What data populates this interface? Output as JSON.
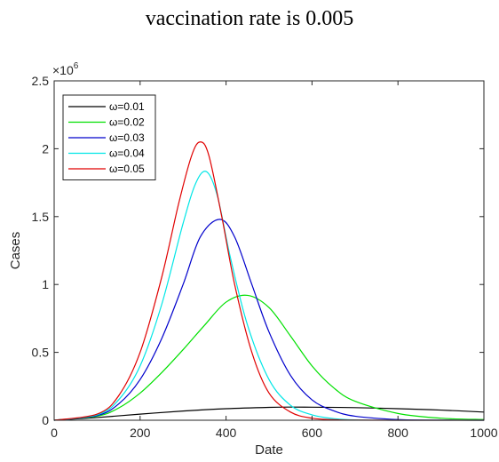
{
  "chart_data": {
    "type": "line",
    "title": "vaccination rate is 0.005",
    "xlabel": "Date",
    "ylabel": "Cases",
    "y_exponent_label": "×10",
    "y_exponent_power": "6",
    "xlim": [
      0,
      1000
    ],
    "ylim": [
      0,
      2500000
    ],
    "x_ticks": [
      0,
      200,
      400,
      600,
      800,
      1000
    ],
    "x_tick_labels": [
      "0",
      "200",
      "400",
      "600",
      "800",
      "1000"
    ],
    "y_ticks": [
      0,
      500000,
      1000000,
      1500000,
      2000000,
      2500000
    ],
    "y_tick_labels": [
      "0",
      "0.5",
      "1",
      "1.5",
      "2",
      "2.5"
    ],
    "grid": false,
    "legend_position": "top-left",
    "series": [
      {
        "name": "ω=0.01",
        "color": "#000000",
        "x": [
          0,
          100,
          200,
          300,
          400,
          500,
          550,
          600,
          700,
          800,
          900,
          1000
        ],
        "y": [
          0,
          20000,
          45000,
          68000,
          85000,
          95000,
          97000,
          96000,
          93000,
          85000,
          75000,
          60000
        ]
      },
      {
        "name": "ω=0.02",
        "color": "#00e000",
        "x": [
          0,
          100,
          150,
          200,
          250,
          300,
          350,
          400,
          450,
          500,
          550,
          600,
          650,
          700,
          800,
          900,
          1000
        ],
        "y": [
          0,
          30000,
          90000,
          200000,
          350000,
          520000,
          700000,
          870000,
          920000,
          830000,
          620000,
          400000,
          240000,
          140000,
          50000,
          15000,
          5000
        ]
      },
      {
        "name": "ω=0.03",
        "color": "#0000cc",
        "x": [
          0,
          100,
          150,
          200,
          250,
          300,
          340,
          385,
          420,
          460,
          500,
          550,
          600,
          650,
          700,
          800,
          900,
          1000
        ],
        "y": [
          0,
          35000,
          120000,
          300000,
          600000,
          1000000,
          1350000,
          1480000,
          1350000,
          1000000,
          650000,
          330000,
          150000,
          70000,
          30000,
          5000,
          1000,
          0
        ]
      },
      {
        "name": "ω=0.04",
        "color": "#00e6e6",
        "x": [
          0,
          100,
          150,
          200,
          250,
          300,
          330,
          355,
          380,
          410,
          450,
          500,
          550,
          600,
          650,
          700,
          800,
          1000
        ],
        "y": [
          0,
          40000,
          150000,
          400000,
          850000,
          1450000,
          1750000,
          1830000,
          1650000,
          1200000,
          700000,
          300000,
          110000,
          40000,
          12000,
          3000,
          0,
          0
        ]
      },
      {
        "name": "ω=0.05",
        "color": "#e00000",
        "x": [
          0,
          100,
          150,
          200,
          250,
          290,
          320,
          340,
          360,
          390,
          420,
          460,
          500,
          550,
          600,
          650,
          700,
          800,
          1000
        ],
        "y": [
          0,
          45000,
          180000,
          500000,
          1050000,
          1600000,
          1950000,
          2050000,
          1950000,
          1500000,
          1000000,
          500000,
          200000,
          60000,
          15000,
          4000,
          1000,
          0,
          0
        ]
      }
    ]
  }
}
